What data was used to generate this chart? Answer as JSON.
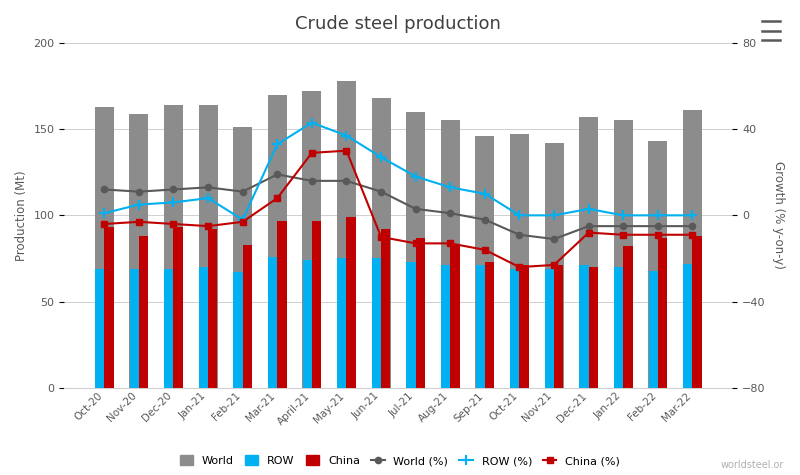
{
  "title": "Crude steel production",
  "months": [
    "Oct-20",
    "Nov-20",
    "Dec-20",
    "Jan-21",
    "Feb-21",
    "Mar-21",
    "April-21",
    "May-21",
    "Jun-21",
    "Jul-21",
    "Aug-21",
    "Sep-21",
    "Oct-21",
    "Nov-21",
    "Dec-21",
    "Jan-22",
    "Feb-22",
    "Mar-22"
  ],
  "world_mt": [
    163,
    159,
    164,
    164,
    151,
    170,
    172,
    178,
    168,
    160,
    155,
    146,
    147,
    142,
    157,
    155,
    143,
    161
  ],
  "row_mt": [
    69,
    69,
    69,
    70,
    67,
    76,
    74,
    75,
    75,
    73,
    71,
    71,
    69,
    69,
    71,
    70,
    68,
    72
  ],
  "china_mt": [
    93,
    88,
    93,
    92,
    83,
    97,
    97,
    99,
    92,
    87,
    83,
    73,
    71,
    71,
    70,
    82,
    87,
    88
  ],
  "world_pct": [
    12,
    11,
    12,
    13,
    11,
    19,
    16,
    16,
    11,
    3,
    1,
    -2,
    -9,
    -11,
    -5,
    -5,
    -5,
    -5
  ],
  "row_pct": [
    1,
    5,
    6,
    8,
    -2,
    33,
    43,
    37,
    27,
    18,
    13,
    10,
    0,
    0,
    3,
    0,
    0,
    0
  ],
  "china_pct": [
    -4,
    -3,
    -4,
    -5,
    -3,
    8,
    29,
    30,
    -10,
    -13,
    -13,
    -16,
    -24,
    -23,
    -8,
    -9,
    -9,
    -9
  ],
  "world_bar_color": "#8c8c8c",
  "row_bar_color": "#00b0f0",
  "china_bar_color": "#c00000",
  "world_line_color": "#595959",
  "row_line_color": "#00b0f0",
  "china_line_color": "#c00000",
  "ylim_left": [
    0,
    200
  ],
  "ylim_right": [
    -80,
    80
  ],
  "yticks_left": [
    0,
    50,
    100,
    150,
    200
  ],
  "yticks_right": [
    -80,
    -40,
    0,
    40,
    80
  ],
  "ylabel_left": "Production (Mt)",
  "ylabel_right": "Growth (% y-on-y)",
  "background_color": "#ffffff",
  "title_fontsize": 13,
  "watermark": "worldsteel.or"
}
